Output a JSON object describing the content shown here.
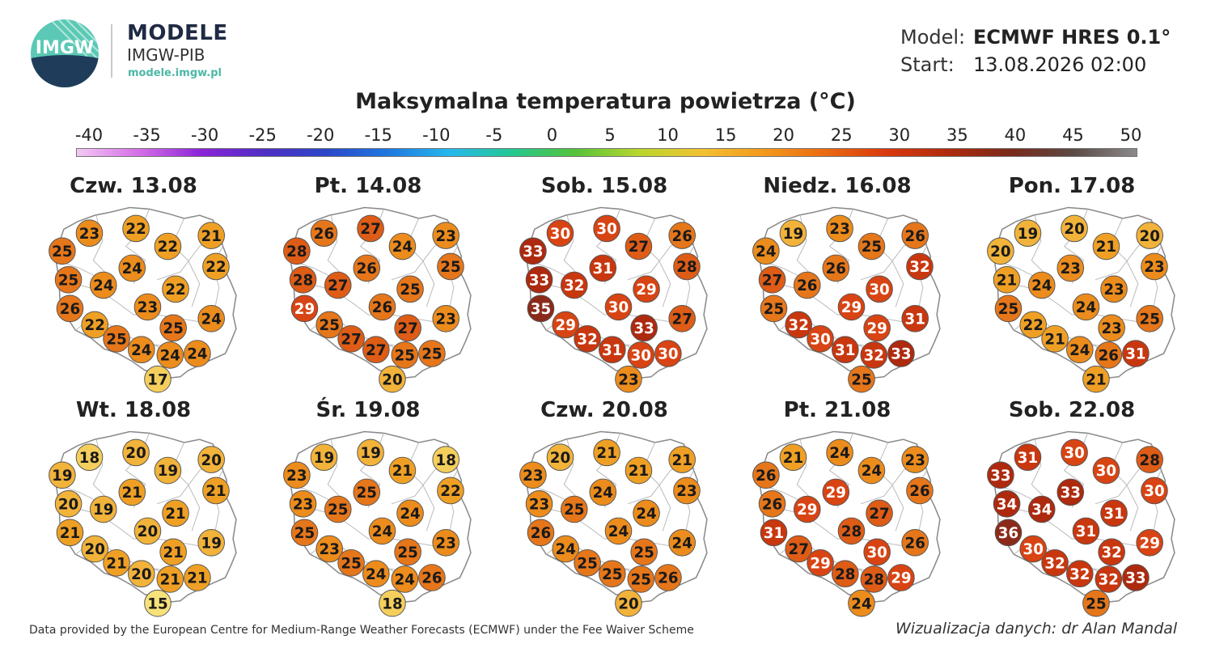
{
  "header": {
    "logo_text": "IMGW",
    "brand_title": "MODELE",
    "brand_subtitle": "IMGW-PIB",
    "brand_url": "modele.imgw.pl",
    "model_label": "Model:",
    "model_value": "ECMWF HRES 0.1°",
    "start_label": "Start:",
    "start_value": "13.08.2026 02:00"
  },
  "chart_title": "Maksymalna temperatura powietrza (°C)",
  "colorbar": {
    "ticks": [
      "-40",
      "-35",
      "-30",
      "-25",
      "-20",
      "-15",
      "-10",
      "-5",
      "0",
      "5",
      "10",
      "15",
      "20",
      "25",
      "30",
      "35",
      "40",
      "45",
      "50"
    ],
    "colors": [
      "#f3c8f4",
      "#d46ee6",
      "#8a24d8",
      "#4f2ec4",
      "#2a47c9",
      "#1f78e0",
      "#27b8ec",
      "#25c88f",
      "#55c23a",
      "#b7d62e",
      "#f1c232",
      "#f39a1c",
      "#ea6a12",
      "#d9380d",
      "#ad2a0d",
      "#792a1b",
      "#5c4a46",
      "#8a8a8a"
    ]
  },
  "panels": [
    {
      "date": "Czw. 13.08",
      "values": [
        23,
        22,
        21,
        25,
        22,
        22,
        24,
        25,
        24,
        22,
        23,
        26,
        24,
        22,
        25,
        25,
        24,
        24,
        24,
        17
      ]
    },
    {
      "date": "Pt. 14.08",
      "values": [
        26,
        27,
        23,
        28,
        24,
        25,
        26,
        28,
        27,
        25,
        26,
        29,
        23,
        25,
        27,
        27,
        27,
        25,
        25,
        20
      ]
    },
    {
      "date": "Sob. 15.08",
      "values": [
        30,
        30,
        26,
        33,
        27,
        28,
        31,
        33,
        32,
        29,
        30,
        35,
        27,
        29,
        33,
        32,
        31,
        30,
        30,
        23
      ]
    },
    {
      "date": "Niedz. 16.08",
      "values": [
        19,
        23,
        26,
        24,
        25,
        32,
        26,
        27,
        26,
        30,
        29,
        25,
        31,
        32,
        29,
        30,
        31,
        32,
        33,
        25
      ]
    },
    {
      "date": "Pon. 17.08",
      "values": [
        19,
        20,
        20,
        20,
        21,
        23,
        23,
        21,
        24,
        23,
        24,
        25,
        25,
        22,
        23,
        21,
        24,
        26,
        31,
        21
      ]
    },
    {
      "date": "Wt. 18.08",
      "values": [
        18,
        20,
        20,
        19,
        19,
        21,
        21,
        20,
        19,
        21,
        20,
        21,
        19,
        20,
        21,
        21,
        20,
        21,
        21,
        15
      ]
    },
    {
      "date": "Śr. 19.08",
      "values": [
        19,
        19,
        18,
        23,
        21,
        22,
        25,
        23,
        25,
        24,
        24,
        25,
        23,
        23,
        25,
        25,
        24,
        24,
        26,
        18
      ]
    },
    {
      "date": "Czw. 20.08",
      "values": [
        20,
        21,
        21,
        23,
        21,
        23,
        24,
        23,
        25,
        24,
        24,
        26,
        24,
        24,
        25,
        25,
        25,
        25,
        26,
        20
      ]
    },
    {
      "date": "Pt. 21.08",
      "values": [
        21,
        24,
        23,
        26,
        24,
        26,
        29,
        26,
        29,
        27,
        28,
        31,
        26,
        27,
        30,
        29,
        28,
        28,
        29,
        24
      ]
    },
    {
      "date": "Sob. 22.08",
      "values": [
        31,
        30,
        28,
        33,
        30,
        30,
        33,
        34,
        34,
        31,
        31,
        36,
        29,
        30,
        32,
        32,
        32,
        32,
        33,
        25
      ]
    }
  ],
  "footer": {
    "attribution": "Data provided by the European Centre for Medium-Range Weather Forecasts (ECMWF) under the Fee Waiver Scheme",
    "credit": "Wizualizacja danych: dr Alan Mandal"
  }
}
